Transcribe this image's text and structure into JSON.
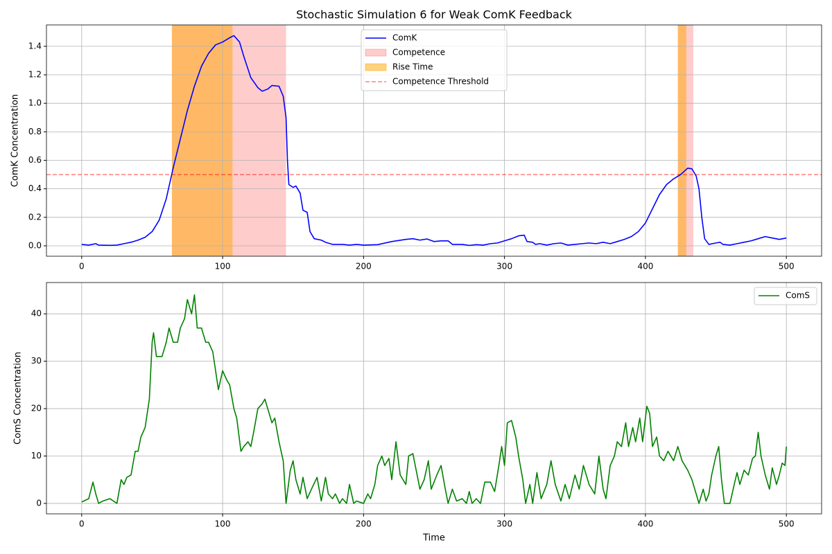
{
  "chart_data": [
    {
      "type": "line",
      "title": "Stochastic Simulation 6 for Weak ComK Feedback",
      "ylabel": "ComK Concentration",
      "x": [
        0,
        5,
        10,
        12,
        20,
        25,
        30,
        35,
        40,
        45,
        50,
        55,
        60,
        65,
        70,
        75,
        80,
        85,
        90,
        95,
        100,
        105,
        108,
        112,
        115,
        120,
        125,
        128,
        132,
        135,
        140,
        143,
        145,
        146,
        147,
        150,
        152,
        155,
        157,
        160,
        162,
        165,
        170,
        173,
        178,
        185,
        190,
        195,
        200,
        210,
        220,
        230,
        235,
        240,
        245,
        250,
        255,
        260,
        263,
        270,
        275,
        280,
        285,
        290,
        295,
        300,
        305,
        310,
        314,
        316,
        320,
        322,
        325,
        330,
        335,
        340,
        345,
        350,
        355,
        360,
        365,
        370,
        375,
        380,
        385,
        390,
        395,
        400,
        405,
        410,
        415,
        420,
        425,
        430,
        433,
        436,
        438,
        440,
        442,
        445,
        450,
        453,
        455,
        460,
        465,
        470,
        475,
        480,
        485,
        490,
        495,
        500
      ],
      "series": [
        {
          "name": "ComK",
          "color": "#0000ff",
          "values": [
            0.01,
            0.005,
            0.015,
            0.005,
            0.003,
            0.005,
            0.015,
            0.025,
            0.04,
            0.06,
            0.1,
            0.18,
            0.33,
            0.55,
            0.75,
            0.95,
            1.12,
            1.26,
            1.35,
            1.41,
            1.43,
            1.46,
            1.475,
            1.43,
            1.33,
            1.18,
            1.11,
            1.085,
            1.1,
            1.125,
            1.12,
            1.05,
            0.9,
            0.6,
            0.43,
            0.41,
            0.42,
            0.37,
            0.25,
            0.235,
            0.1,
            0.05,
            0.04,
            0.025,
            0.01,
            0.01,
            0.005,
            0.01,
            0.005,
            0.008,
            0.03,
            0.045,
            0.05,
            0.04,
            0.048,
            0.03,
            0.035,
            0.035,
            0.01,
            0.01,
            0.003,
            0.008,
            0.005,
            0.015,
            0.02,
            0.035,
            0.05,
            0.07,
            0.075,
            0.03,
            0.025,
            0.01,
            0.015,
            0.005,
            0.015,
            0.02,
            0.005,
            0.01,
            0.015,
            0.02,
            0.015,
            0.025,
            0.015,
            0.03,
            0.045,
            0.065,
            0.1,
            0.16,
            0.26,
            0.36,
            0.43,
            0.47,
            0.5,
            0.545,
            0.54,
            0.49,
            0.4,
            0.2,
            0.05,
            0.01,
            0.02,
            0.025,
            0.01,
            0.005,
            0.015,
            0.025,
            0.035,
            0.05,
            0.065,
            0.055,
            0.045,
            0.055
          ]
        }
      ],
      "spans": [
        {
          "name": "Competence",
          "color": "#ff0000",
          "alpha": 0.2,
          "ranges": [
            [
              64,
              145
            ],
            [
              423,
              434
            ]
          ]
        },
        {
          "name": "Rise Time",
          "color": "#ffa500",
          "alpha": 0.5,
          "ranges": [
            [
              64,
              107
            ],
            [
              423,
              429
            ]
          ]
        }
      ],
      "hlines": [
        {
          "name": "Competence Threshold",
          "value": 0.5,
          "color": "#ff0000",
          "alpha": 0.5,
          "dashed": true
        }
      ],
      "xlim": [
        -25,
        525
      ],
      "xticks": [
        0,
        100,
        200,
        300,
        400,
        500
      ],
      "ylim": [
        -0.073,
        1.55
      ],
      "yticks": [
        {
          "value": 0,
          "label": "0.0"
        },
        0.2,
        0.4,
        0.6,
        0.8,
        {
          "value": 1,
          "label": "1.0"
        },
        1.2,
        1.4
      ],
      "grid": true,
      "legend": "upper-center"
    },
    {
      "type": "line",
      "xlabel": "Time",
      "ylabel": "ComS Concentration",
      "x": [
        0,
        5,
        8,
        10,
        12,
        15,
        20,
        25,
        28,
        30,
        32,
        35,
        38,
        40,
        42,
        45,
        48,
        50,
        51,
        53,
        57,
        60,
        62,
        65,
        68,
        70,
        73,
        75,
        78,
        80,
        82,
        85,
        88,
        90,
        93,
        95,
        97,
        100,
        103,
        105,
        108,
        110,
        113,
        115,
        118,
        120,
        122,
        125,
        128,
        130,
        132,
        135,
        137,
        140,
        143,
        145,
        148,
        150,
        152,
        155,
        157,
        160,
        163,
        167,
        170,
        173,
        175,
        178,
        180,
        183,
        185,
        188,
        190,
        193,
        195,
        200,
        203,
        205,
        208,
        210,
        213,
        215,
        218,
        220,
        223,
        226,
        230,
        232,
        235,
        238,
        240,
        243,
        246,
        248,
        252,
        255,
        258,
        260,
        263,
        266,
        270,
        273,
        275,
        277,
        280,
        283,
        286,
        290,
        293,
        296,
        298,
        300,
        302,
        305,
        308,
        310,
        313,
        315,
        318,
        320,
        323,
        326,
        330,
        333,
        336,
        340,
        343,
        346,
        350,
        353,
        356,
        360,
        364,
        367,
        370,
        372,
        375,
        378,
        380,
        383,
        386,
        388,
        391,
        393,
        396,
        398,
        401,
        403,
        405,
        408,
        410,
        413,
        416,
        420,
        423,
        426,
        430,
        433,
        436,
        438,
        441,
        443,
        445,
        447,
        450,
        452,
        454,
        456,
        460,
        463,
        465,
        467,
        470,
        473,
        476,
        478,
        480,
        482,
        485,
        488,
        490,
        493,
        495,
        497,
        499,
        500
      ],
      "series": [
        {
          "name": "ComS",
          "color": "#008000",
          "values": [
            0.3,
            1,
            4.5,
            2,
            0,
            0.5,
            1,
            0,
            5,
            4,
            5.5,
            6,
            11,
            11,
            14,
            16,
            22,
            34,
            36,
            31,
            31,
            34,
            37,
            34,
            34,
            37,
            39,
            43,
            40,
            44,
            37,
            37,
            34,
            34,
            32,
            28,
            24,
            28,
            26,
            25,
            20,
            18,
            11,
            12,
            13,
            12,
            15,
            20,
            21,
            22,
            20,
            17,
            18,
            13,
            9,
            0,
            7,
            9,
            5,
            2,
            5.5,
            1,
            3,
            5.5,
            0.5,
            5.5,
            2,
            1,
            2,
            0,
            1,
            0,
            4,
            0,
            0.5,
            0,
            2,
            1,
            4,
            8,
            10,
            8,
            9.5,
            5,
            13,
            6,
            4,
            10,
            10.5,
            6,
            3,
            5,
            9,
            3,
            6,
            8,
            3,
            0,
            3,
            0.5,
            1,
            0,
            2.5,
            0,
            1,
            0,
            4.5,
            4.5,
            2.5,
            8,
            12,
            8,
            17,
            17.5,
            14,
            10,
            5,
            0,
            4,
            0,
            6.5,
            1,
            4,
            9,
            4,
            0.5,
            4,
            1,
            6,
            3,
            8,
            4,
            2,
            10,
            3,
            1,
            8,
            10,
            13,
            12,
            17,
            12,
            16,
            13,
            18,
            13,
            20.5,
            19,
            12,
            14,
            10,
            9,
            11,
            9,
            12,
            9,
            7,
            5,
            2,
            0,
            3,
            0.5,
            2,
            6,
            10,
            12,
            5,
            0,
            0,
            4,
            6.5,
            4,
            7,
            6,
            9.5,
            10,
            15,
            10,
            6,
            3,
            7.5,
            4,
            6,
            8.5,
            8,
            12
          ]
        }
      ],
      "xlim": [
        -25,
        525
      ],
      "xticks": [
        0,
        100,
        200,
        300,
        400,
        500
      ],
      "ylim": [
        -2.2,
        46.6
      ],
      "yticks": [
        0,
        10,
        20,
        30,
        40
      ],
      "grid": true,
      "legend": "upper-right"
    }
  ]
}
